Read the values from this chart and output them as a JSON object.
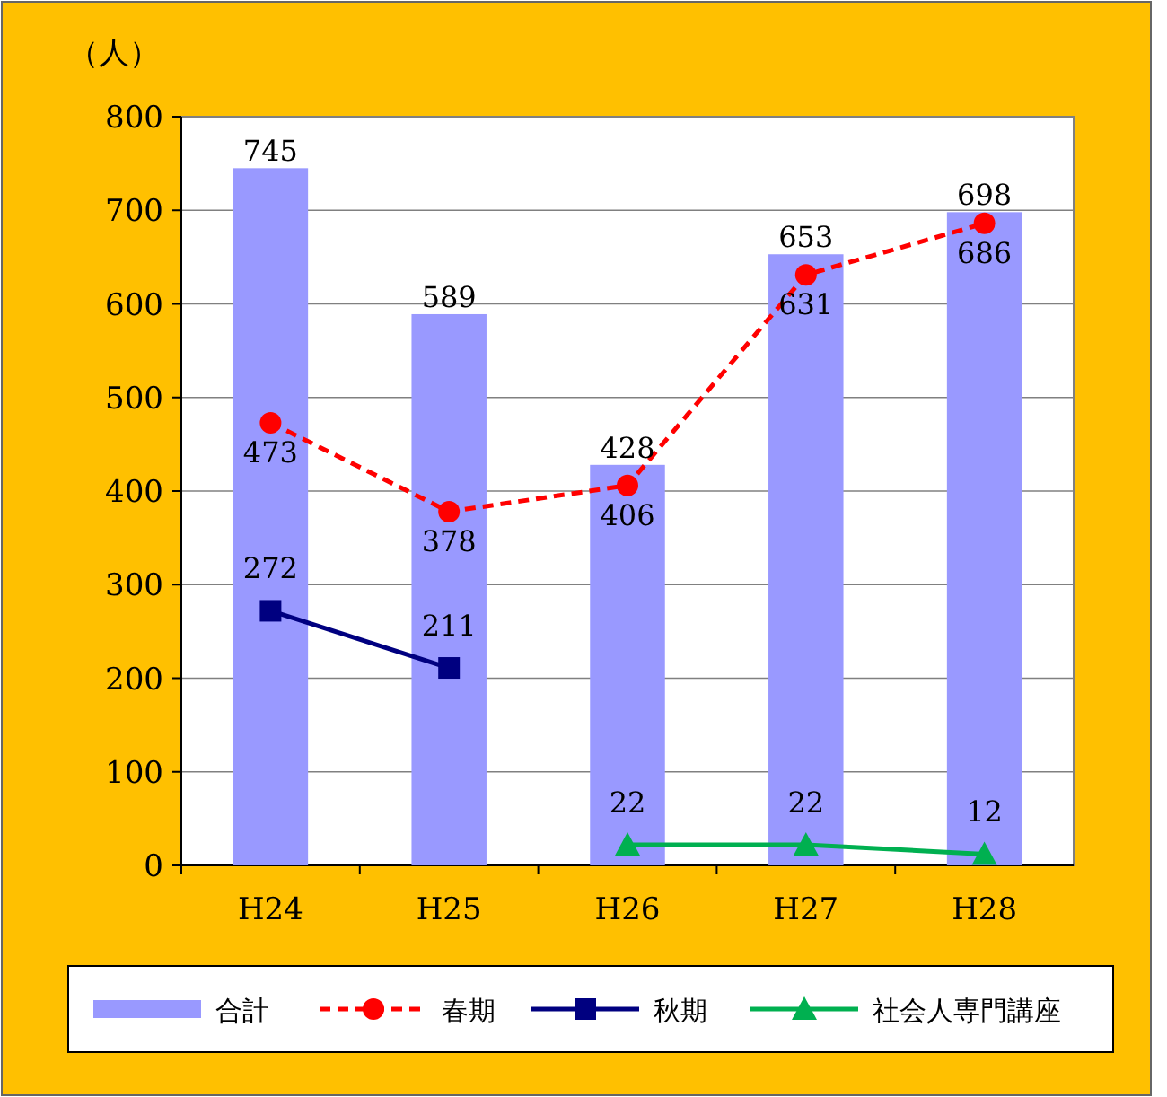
{
  "chart_data": {
    "type": "bar",
    "ylabel": "（人）",
    "categories": [
      "H24",
      "H25",
      "H26",
      "H27",
      "H28"
    ],
    "series": [
      {
        "name": "合計",
        "color": "#9999ff",
        "values": [
          745,
          589,
          428,
          653,
          698
        ]
      },
      {
        "name": "春期",
        "type": "line",
        "color": "#ff0000",
        "marker": "circle",
        "line_style": "dashed",
        "values": [
          473,
          378,
          406,
          631,
          686
        ]
      },
      {
        "name": "秋期",
        "type": "line",
        "color": "#000080",
        "marker": "square",
        "line_style": "solid",
        "values": [
          272,
          211,
          null,
          null,
          null
        ]
      },
      {
        "name": "社会人専門講座",
        "type": "line",
        "color": "#00b050",
        "marker": "triangle",
        "line_style": "solid",
        "values": [
          null,
          null,
          22,
          22,
          12
        ]
      }
    ],
    "ylim": [
      0,
      800
    ],
    "yticks": [
      0,
      100,
      200,
      300,
      400,
      500,
      600,
      700,
      800
    ],
    "grid": "y",
    "legend": "bottom",
    "data_labels": true
  }
}
